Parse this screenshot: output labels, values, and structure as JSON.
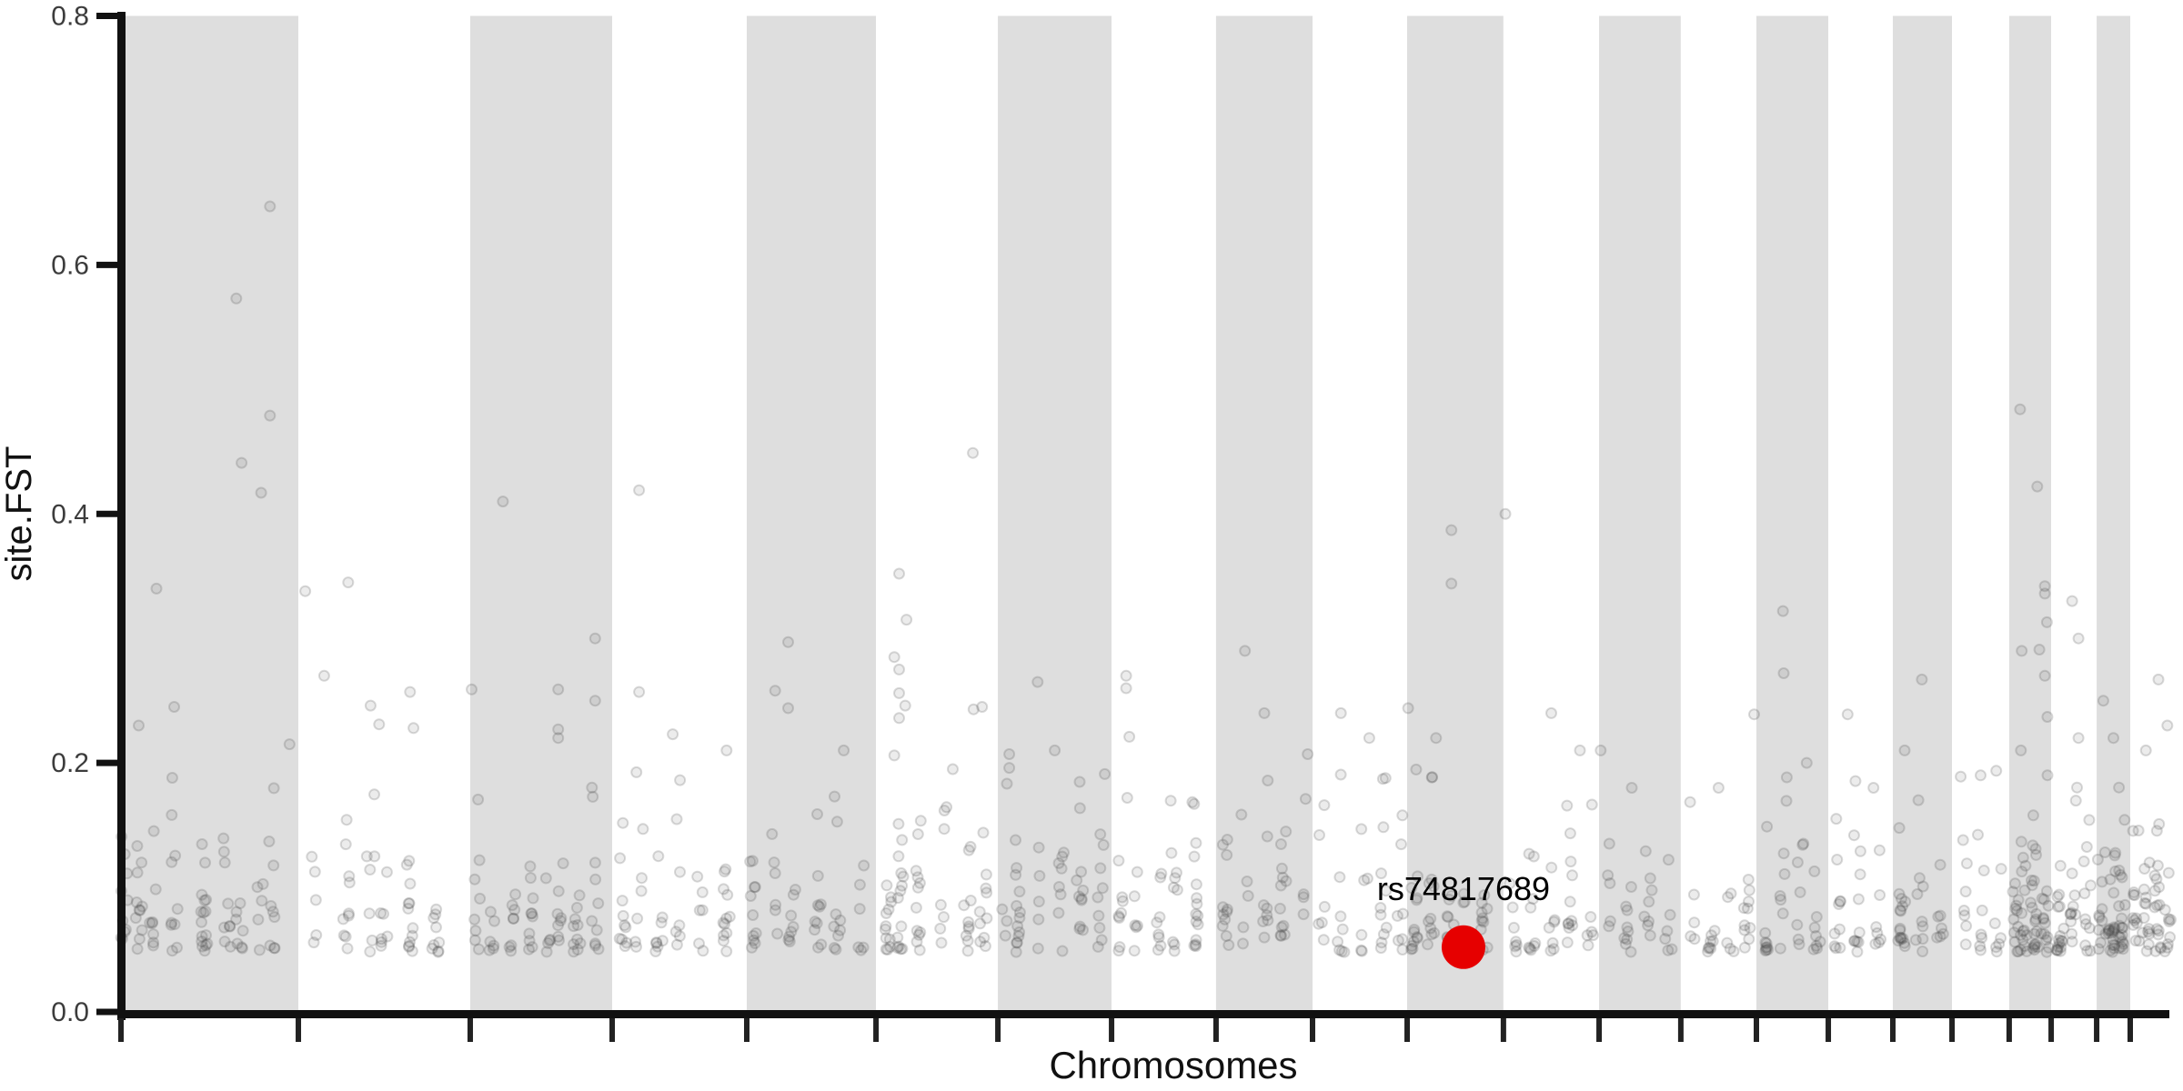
{
  "chart_data": {
    "type": "scatter",
    "title": "",
    "xlabel": "Chromosomes",
    "ylabel": "site.FST",
    "ylim": [
      0,
      0.8
    ],
    "yticks": [
      0.0,
      0.2,
      0.4,
      0.6,
      0.8
    ],
    "ytick_labels": [
      "0.0",
      "0.2",
      "0.4",
      "0.6",
      "0.8"
    ],
    "grid": false,
    "legend": false,
    "x_ticks_at_chromosome_boundaries": true,
    "band_shaded_color": "#dedede",
    "band_unshaded_color": "#ffffff",
    "point_style": {
      "radius": 5.5,
      "fill": "rgba(70,70,70,0.10)",
      "stroke": "rgba(70,70,70,0.20)",
      "stroke_width": 2
    },
    "highlight": {
      "label": "rs74817689",
      "chromosome": 11,
      "x_frac_in_chr": 0.585,
      "fst": 0.052,
      "color": "#e60000",
      "radius": 24
    },
    "n_points_total_estimate": 940,
    "background_fst_model": {
      "seed": 20240611,
      "min": 0.048,
      "exp_mean": 0.038,
      "max": 0.195,
      "column_jitter_frac": 0.007
    },
    "chromosomes": [
      {
        "chr": 1,
        "start_frac": 0.0,
        "end_frac": 0.0866,
        "shaded": true,
        "n_background": 85,
        "columns": [
          0.02,
          0.1,
          0.18,
          0.3,
          0.47,
          0.6,
          0.67,
          0.78,
          0.85
        ],
        "notable_points": [
          [
            0.84,
            0.647
          ],
          [
            0.65,
            0.573
          ],
          [
            0.84,
            0.479
          ],
          [
            0.68,
            0.441
          ],
          [
            0.79,
            0.417
          ],
          [
            0.2,
            0.34
          ],
          [
            0.95,
            0.215
          ],
          [
            0.3,
            0.245
          ],
          [
            0.1,
            0.23
          ]
        ]
      },
      {
        "chr": 2,
        "start_frac": 0.0866,
        "end_frac": 0.1705,
        "shaded": false,
        "n_background": 50,
        "columns": [
          0.1,
          0.28,
          0.42,
          0.5,
          0.65,
          0.8
        ],
        "notable_points": [
          [
            0.29,
            0.345
          ],
          [
            0.04,
            0.338
          ],
          [
            0.15,
            0.27
          ],
          [
            0.65,
            0.257
          ],
          [
            0.42,
            0.246
          ],
          [
            0.47,
            0.231
          ],
          [
            0.67,
            0.228
          ]
        ]
      },
      {
        "chr": 3,
        "start_frac": 0.1705,
        "end_frac": 0.2398,
        "shaded": true,
        "n_background": 65,
        "columns": [
          0.05,
          0.15,
          0.3,
          0.42,
          0.55,
          0.63,
          0.75,
          0.88
        ],
        "notable_points": [
          [
            0.23,
            0.41
          ],
          [
            0.88,
            0.3
          ],
          [
            0.01,
            0.259
          ],
          [
            0.62,
            0.259
          ],
          [
            0.88,
            0.25
          ],
          [
            0.62,
            0.227
          ],
          [
            0.62,
            0.22
          ]
        ]
      },
      {
        "chr": 4,
        "start_frac": 0.2398,
        "end_frac": 0.3055,
        "shaded": false,
        "n_background": 50,
        "columns": [
          0.08,
          0.2,
          0.35,
          0.5,
          0.65,
          0.85
        ],
        "notable_points": [
          [
            0.2,
            0.419
          ],
          [
            0.2,
            0.257
          ],
          [
            0.45,
            0.223
          ],
          [
            0.85,
            0.21
          ]
        ]
      },
      {
        "chr": 5,
        "start_frac": 0.3055,
        "end_frac": 0.3686,
        "shaded": true,
        "n_background": 50,
        "columns": [
          0.05,
          0.22,
          0.35,
          0.55,
          0.7,
          0.88
        ],
        "notable_points": [
          [
            0.32,
            0.297
          ],
          [
            0.22,
            0.258
          ],
          [
            0.32,
            0.244
          ],
          [
            0.75,
            0.21
          ]
        ]
      },
      {
        "chr": 6,
        "start_frac": 0.3686,
        "end_frac": 0.4281,
        "shaded": false,
        "n_background": 65,
        "columns": [
          0.1,
          0.2,
          0.35,
          0.55,
          0.75,
          0.88
        ],
        "notable_points": [
          [
            0.795,
            0.449
          ],
          [
            0.19,
            0.352
          ],
          [
            0.25,
            0.315
          ],
          [
            0.15,
            0.285
          ],
          [
            0.19,
            0.275
          ],
          [
            0.19,
            0.256
          ],
          [
            0.24,
            0.246
          ],
          [
            0.87,
            0.245
          ],
          [
            0.8,
            0.243
          ],
          [
            0.19,
            0.236
          ],
          [
            0.15,
            0.206
          ],
          [
            0.63,
            0.195
          ]
        ]
      },
      {
        "chr": 7,
        "start_frac": 0.4281,
        "end_frac": 0.4836,
        "shaded": true,
        "n_background": 50,
        "columns": [
          0.06,
          0.18,
          0.35,
          0.55,
          0.72,
          0.9
        ],
        "notable_points": [
          [
            0.35,
            0.265
          ],
          [
            0.5,
            0.21
          ],
          [
            0.1,
            0.207
          ],
          [
            0.1,
            0.196
          ],
          [
            0.94,
            0.191
          ]
        ]
      },
      {
        "chr": 8,
        "start_frac": 0.4836,
        "end_frac": 0.5346,
        "shaded": false,
        "n_background": 45,
        "columns": [
          0.1,
          0.25,
          0.45,
          0.6,
          0.8
        ],
        "notable_points": [
          [
            0.14,
            0.27
          ],
          [
            0.14,
            0.26
          ],
          [
            0.17,
            0.221
          ],
          [
            0.15,
            0.172
          ],
          [
            0.79,
            0.167
          ]
        ]
      },
      {
        "chr": 9,
        "start_frac": 0.5346,
        "end_frac": 0.5817,
        "shaded": true,
        "n_background": 40,
        "columns": [
          0.1,
          0.3,
          0.5,
          0.7,
          0.9
        ],
        "notable_points": [
          [
            0.3,
            0.29
          ],
          [
            0.5,
            0.24
          ],
          [
            0.95,
            0.207
          ]
        ]
      },
      {
        "chr": 10,
        "start_frac": 0.5817,
        "end_frac": 0.6279,
        "shaded": false,
        "n_background": 38,
        "columns": [
          0.1,
          0.3,
          0.55,
          0.75,
          0.92
        ],
        "notable_points": [
          [
            0.3,
            0.24
          ],
          [
            0.6,
            0.22
          ]
        ]
      },
      {
        "chr": 11,
        "start_frac": 0.6279,
        "end_frac": 0.6749,
        "shaded": true,
        "n_background": 50,
        "columns": [
          0.08,
          0.25,
          0.45,
          0.6,
          0.8
        ],
        "notable_points": [
          [
            0.46,
            0.387
          ],
          [
            0.46,
            0.344
          ],
          [
            0.01,
            0.244
          ],
          [
            0.3,
            0.22
          ]
        ]
      },
      {
        "chr": 12,
        "start_frac": 0.6749,
        "end_frac": 0.7216,
        "shaded": false,
        "n_background": 40,
        "columns": [
          0.1,
          0.3,
          0.5,
          0.7,
          0.9
        ],
        "notable_points": [
          [
            0.02,
            0.4
          ],
          [
            0.5,
            0.24
          ],
          [
            0.8,
            0.21
          ]
        ]
      },
      {
        "chr": 13,
        "start_frac": 0.7216,
        "end_frac": 0.7615,
        "shaded": true,
        "n_background": 28,
        "columns": [
          0.12,
          0.35,
          0.6,
          0.85
        ],
        "notable_points": [
          [
            0.02,
            0.21
          ],
          [
            0.4,
            0.18
          ]
        ]
      },
      {
        "chr": 14,
        "start_frac": 0.7615,
        "end_frac": 0.7984,
        "shaded": false,
        "n_background": 28,
        "columns": [
          0.15,
          0.4,
          0.65,
          0.88
        ],
        "notable_points": [
          [
            0.97,
            0.239
          ],
          [
            0.5,
            0.18
          ]
        ]
      },
      {
        "chr": 15,
        "start_frac": 0.7984,
        "end_frac": 0.8335,
        "shaded": true,
        "n_background": 32,
        "columns": [
          0.12,
          0.38,
          0.62,
          0.85
        ],
        "notable_points": [
          [
            0.37,
            0.322
          ],
          [
            0.38,
            0.272
          ],
          [
            0.7,
            0.2
          ]
        ]
      },
      {
        "chr": 16,
        "start_frac": 0.8335,
        "end_frac": 0.865,
        "shaded": false,
        "n_background": 28,
        "columns": [
          0.15,
          0.45,
          0.75
        ],
        "notable_points": [
          [
            0.3,
            0.239
          ],
          [
            0.7,
            0.18
          ]
        ]
      },
      {
        "chr": 17,
        "start_frac": 0.865,
        "end_frac": 0.8939,
        "shaded": true,
        "n_background": 32,
        "columns": [
          0.15,
          0.45,
          0.8
        ],
        "notable_points": [
          [
            0.49,
            0.267
          ],
          [
            0.2,
            0.21
          ]
        ]
      },
      {
        "chr": 18,
        "start_frac": 0.8939,
        "end_frac": 0.9218,
        "shaded": false,
        "n_background": 22,
        "columns": [
          0.2,
          0.5,
          0.8
        ],
        "notable_points": [
          [
            0.5,
            0.19
          ]
        ]
      },
      {
        "chr": 19,
        "start_frac": 0.9218,
        "end_frac": 0.9423,
        "shaded": true,
        "n_background": 60,
        "columns": [
          0.15,
          0.35,
          0.6,
          0.85
        ],
        "notable_points": [
          [
            0.26,
            0.484
          ],
          [
            0.67,
            0.422
          ],
          [
            0.85,
            0.342
          ],
          [
            0.85,
            0.336
          ],
          [
            0.9,
            0.313
          ],
          [
            0.72,
            0.291
          ],
          [
            0.3,
            0.29
          ],
          [
            0.85,
            0.27
          ],
          [
            0.91,
            0.237
          ],
          [
            0.28,
            0.21
          ]
        ]
      },
      {
        "chr": 20,
        "start_frac": 0.9423,
        "end_frac": 0.9645,
        "shaded": false,
        "n_background": 40,
        "columns": [
          0.2,
          0.5,
          0.8
        ],
        "notable_points": [
          [
            0.46,
            0.33
          ],
          [
            0.6,
            0.3
          ],
          [
            0.6,
            0.22
          ]
        ]
      },
      {
        "chr": 21,
        "start_frac": 0.9645,
        "end_frac": 0.9809,
        "shaded": true,
        "n_background": 50,
        "columns": [
          0.15,
          0.45,
          0.75
        ],
        "notable_points": [
          [
            0.2,
            0.25
          ],
          [
            0.5,
            0.22
          ]
        ]
      },
      {
        "chr": 22,
        "start_frac": 0.9809,
        "end_frac": 1.0,
        "shaded": false,
        "n_background": 50,
        "columns": [
          0.15,
          0.4,
          0.7,
          0.95
        ],
        "notable_points": [
          [
            0.72,
            0.267
          ],
          [
            0.95,
            0.23
          ],
          [
            0.4,
            0.21
          ]
        ]
      }
    ]
  }
}
